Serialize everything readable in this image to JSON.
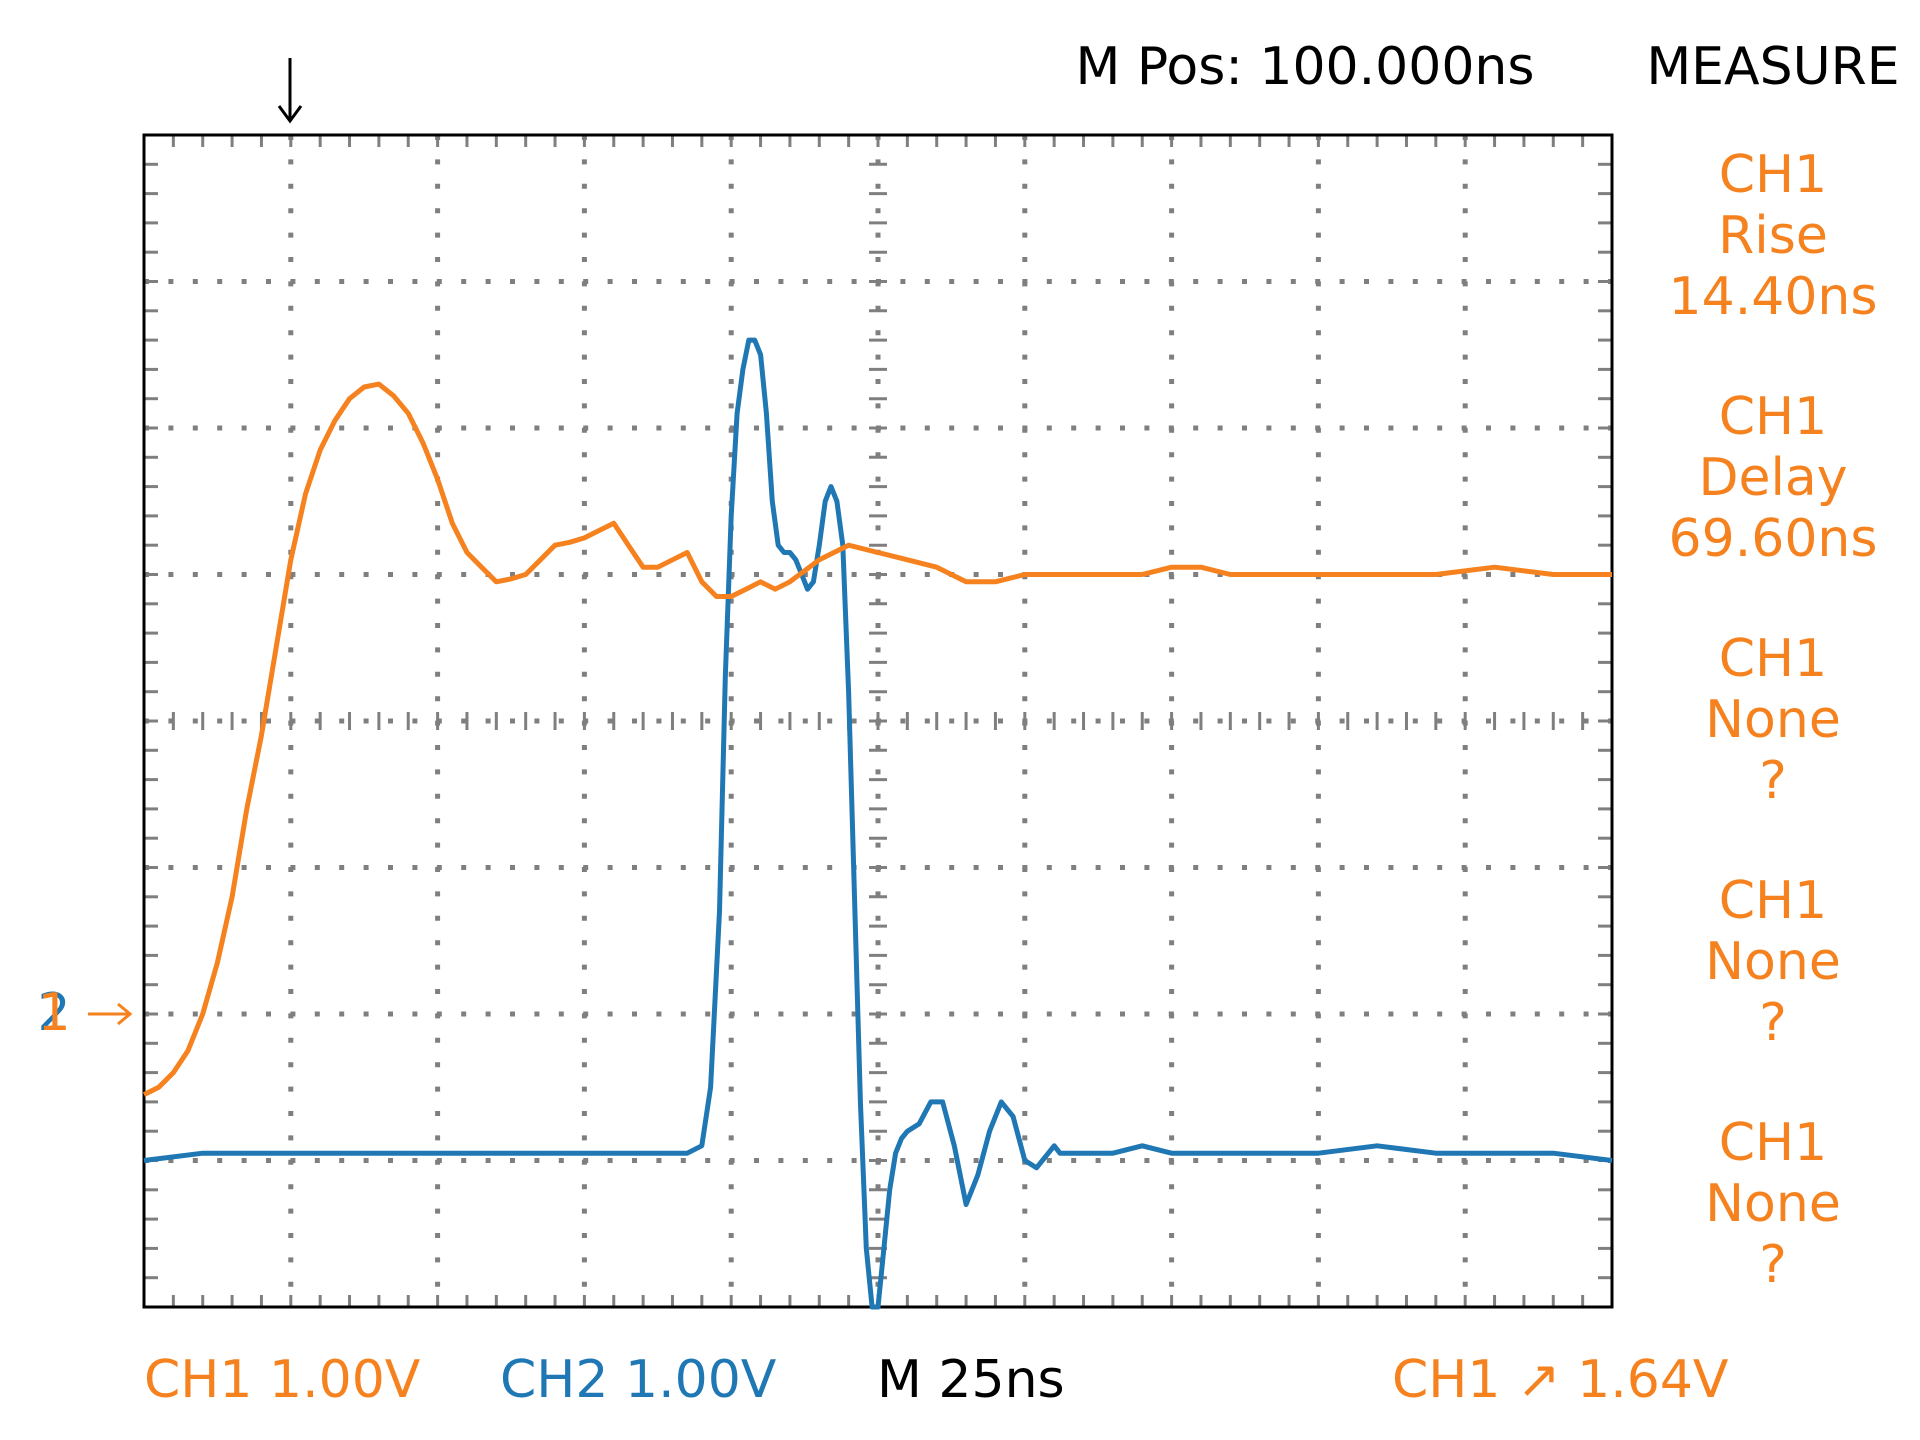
{
  "header": {
    "m_pos": "M Pos: 100.000ns",
    "menu_title": "MEASURE"
  },
  "measurements": [
    {
      "source": "CH1",
      "type": "Rise",
      "value": "14.40ns"
    },
    {
      "source": "CH1",
      "type": "Delay",
      "value": "69.60ns"
    },
    {
      "source": "CH1",
      "type": "None",
      "value": "?"
    },
    {
      "source": "CH1",
      "type": "None",
      "value": "?"
    },
    {
      "source": "CH1",
      "type": "None",
      "value": "?"
    }
  ],
  "footer": {
    "ch1_scale": "CH1 1.00V",
    "ch2_scale": "CH2 1.00V",
    "timebase": "M 25ns",
    "trigger": "CH1 ↗ 1.64V"
  },
  "markers": {
    "ch1_ground": "1",
    "ch2_ground": "2",
    "trigger_position_icon": "down-arrow-icon"
  },
  "colors": {
    "ch1": "#f5821f",
    "ch2": "#1f77b4",
    "grid": "#7f7f7f",
    "frame": "#000000",
    "text": "#000000"
  },
  "chart_data": {
    "type": "line",
    "xlim": [
      -100,
      150
    ],
    "ylim": [
      -4,
      4
    ],
    "x_unit": "ns",
    "y_unit": "div",
    "divisions": {
      "x": 10,
      "y": 8
    },
    "series": [
      {
        "name": "CH1",
        "color": "#f5821f",
        "x": [
          -100,
          -97.5,
          -95,
          -92.5,
          -90,
          -87.5,
          -85,
          -82.5,
          -80,
          -77.5,
          -75,
          -72.5,
          -70,
          -67.5,
          -65,
          -62.5,
          -60,
          -57.5,
          -55,
          -52.5,
          -50,
          -47.5,
          -45,
          -42.5,
          -40,
          -37.5,
          -35,
          -32.5,
          -30,
          -27.5,
          -25,
          -22.5,
          -20,
          -17.5,
          -15,
          -12.5,
          -10,
          -7.5,
          -5,
          -2.5,
          0,
          2.5,
          5,
          7.5,
          10,
          15,
          20,
          25,
          30,
          35,
          40,
          45,
          50,
          55,
          60,
          65,
          70,
          75,
          80,
          85,
          90,
          95,
          100,
          110,
          120,
          130,
          140,
          150
        ],
        "y": [
          -2.55,
          -2.5,
          -2.4,
          -2.25,
          -2.0,
          -1.65,
          -1.2,
          -0.6,
          -0.1,
          0.5,
          1.1,
          1.55,
          1.85,
          2.05,
          2.2,
          2.28,
          2.3,
          2.22,
          2.1,
          1.9,
          1.65,
          1.35,
          1.15,
          1.05,
          0.95,
          0.97,
          1.0,
          1.1,
          1.2,
          1.22,
          1.25,
          1.3,
          1.35,
          1.2,
          1.05,
          1.05,
          1.1,
          1.15,
          0.95,
          0.85,
          0.85,
          0.9,
          0.95,
          0.9,
          0.95,
          1.1,
          1.2,
          1.15,
          1.1,
          1.05,
          0.95,
          0.95,
          1.0,
          1.0,
          1.0,
          1.0,
          1.0,
          1.05,
          1.05,
          1.0,
          1.0,
          1.0,
          1.0,
          1.0,
          1.0,
          1.05,
          1.0,
          1.0
        ]
      },
      {
        "name": "CH2",
        "color": "#1f77b4",
        "x": [
          -100,
          -90,
          -80,
          -70,
          -60,
          -50,
          -40,
          -30,
          -20,
          -10,
          -7.5,
          -5,
          -3.5,
          -2,
          -1,
          0,
          1,
          2,
          3,
          4,
          5,
          6,
          7,
          8,
          9,
          10,
          11,
          12,
          13,
          14,
          15,
          16,
          17,
          18,
          19,
          20,
          21,
          22,
          23,
          24,
          25,
          26,
          27,
          28,
          29,
          30,
          32,
          34,
          36,
          38,
          40,
          42,
          44,
          46,
          48,
          50,
          52,
          54,
          55,
          56,
          58,
          60,
          65,
          70,
          75,
          80,
          90,
          100,
          110,
          120,
          130,
          140,
          150
        ],
        "y": [
          -3.0,
          -2.95,
          -2.95,
          -2.95,
          -2.95,
          -2.95,
          -2.95,
          -2.95,
          -2.95,
          -2.95,
          -2.95,
          -2.9,
          -2.5,
          -1.3,
          0.3,
          1.4,
          2.1,
          2.4,
          2.6,
          2.6,
          2.5,
          2.1,
          1.5,
          1.2,
          1.15,
          1.15,
          1.1,
          1.0,
          0.9,
          0.95,
          1.2,
          1.5,
          1.6,
          1.5,
          1.2,
          0.2,
          -1.2,
          -2.6,
          -3.6,
          -4.0,
          -4.0,
          -3.6,
          -3.2,
          -2.95,
          -2.85,
          -2.8,
          -2.75,
          -2.6,
          -2.6,
          -2.9,
          -3.3,
          -3.1,
          -2.8,
          -2.6,
          -2.7,
          -3.0,
          -3.05,
          -2.95,
          -2.9,
          -2.95,
          -2.95,
          -2.95,
          -2.95,
          -2.9,
          -2.95,
          -2.95,
          -2.95,
          -2.95,
          -2.9,
          -2.95,
          -2.95,
          -2.95,
          -3.0
        ]
      }
    ]
  }
}
